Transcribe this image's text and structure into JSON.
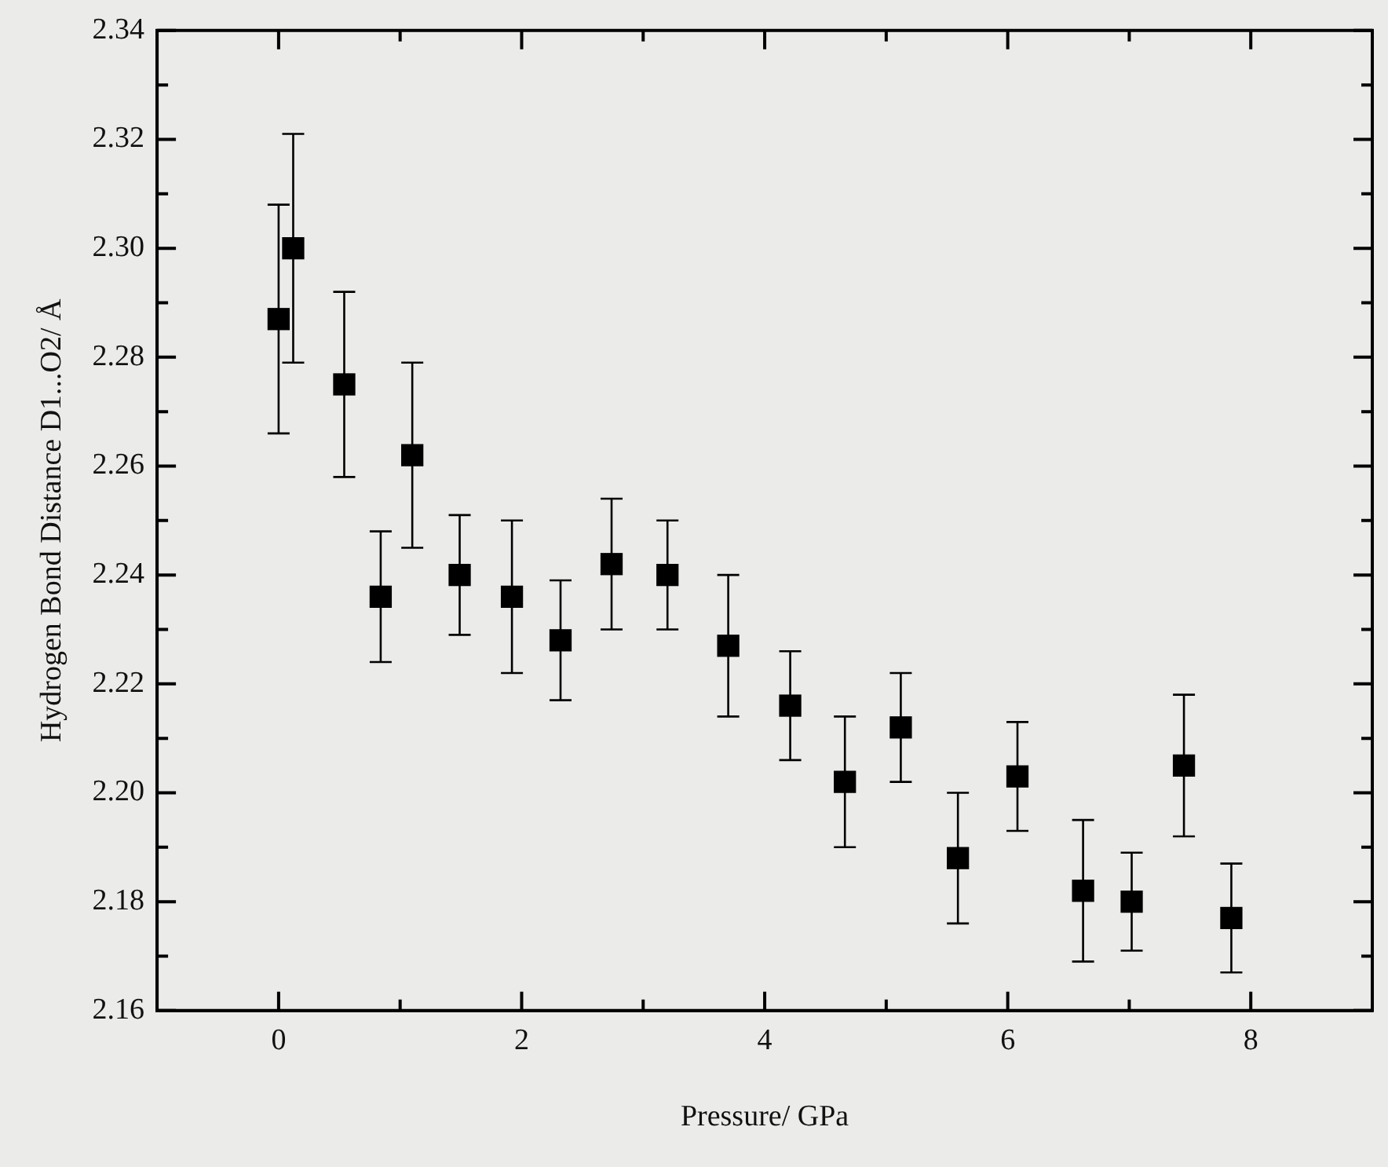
{
  "chart_data": {
    "type": "scatter",
    "xlabel": "Pressure/ GPa",
    "ylabel": "Hydrogen Bond Distance D1...O2/ Å",
    "marker": "square",
    "xlim": [
      -1,
      9
    ],
    "ylim": [
      2.16,
      2.34
    ],
    "xticks": [
      0,
      {
        "value": 1,
        "label": null
      },
      2,
      {
        "value": 3,
        "label": null
      },
      4,
      {
        "value": 5,
        "label": null
      },
      6,
      {
        "value": 7,
        "label": null
      },
      8
    ],
    "yticks": [
      {
        "value": 2.16,
        "label": "2.16"
      },
      {
        "value": 2.17,
        "label": null
      },
      {
        "value": 2.18,
        "label": "2.18"
      },
      {
        "value": 2.19,
        "label": null
      },
      {
        "value": 2.2,
        "label": "2.20"
      },
      {
        "value": 2.21,
        "label": null
      },
      {
        "value": 2.22,
        "label": "2.22"
      },
      {
        "value": 2.23,
        "label": null
      },
      {
        "value": 2.24,
        "label": "2.24"
      },
      {
        "value": 2.25,
        "label": null
      },
      {
        "value": 2.26,
        "label": "2.26"
      },
      {
        "value": 2.27,
        "label": null
      },
      {
        "value": 2.28,
        "label": "2.28"
      },
      {
        "value": 2.29,
        "label": null
      },
      {
        "value": 2.3,
        "label": "2.30"
      },
      {
        "value": 2.31,
        "label": null
      },
      {
        "value": 2.32,
        "label": "2.32"
      },
      {
        "value": 2.33,
        "label": null
      },
      {
        "value": 2.34,
        "label": "2.34"
      }
    ],
    "series": [
      {
        "color": "#000000",
        "x": [
          0,
          0.12,
          0.54,
          0.84,
          1.1,
          1.49,
          1.92,
          2.32,
          2.74,
          3.2,
          3.7,
          4.21,
          4.66,
          5.12,
          5.59,
          6.08,
          6.62,
          7.02,
          7.45,
          7.84
        ],
        "values": [
          2.287,
          2.3,
          2.275,
          2.236,
          2.262,
          2.24,
          2.236,
          2.228,
          2.242,
          2.24,
          2.227,
          2.216,
          2.202,
          2.212,
          2.188,
          2.203,
          2.182,
          2.18,
          2.205,
          2.177
        ],
        "errors": [
          [
            2.266,
            2.308
          ],
          [
            2.279,
            2.321
          ],
          [
            2.258,
            2.292
          ],
          [
            2.224,
            2.248
          ],
          [
            2.245,
            2.279
          ],
          [
            2.229,
            2.251
          ],
          [
            2.222,
            2.25
          ],
          [
            2.217,
            2.239
          ],
          [
            2.23,
            2.254
          ],
          [
            2.23,
            2.25
          ],
          [
            2.214,
            2.24
          ],
          [
            2.206,
            2.226
          ],
          [
            2.19,
            2.214
          ],
          [
            2.202,
            2.222
          ],
          [
            2.176,
            2.2
          ],
          [
            2.193,
            2.213
          ],
          [
            2.169,
            2.195
          ],
          [
            2.171,
            2.189
          ],
          [
            2.192,
            2.218
          ],
          [
            2.167,
            2.187
          ]
        ]
      }
    ]
  }
}
